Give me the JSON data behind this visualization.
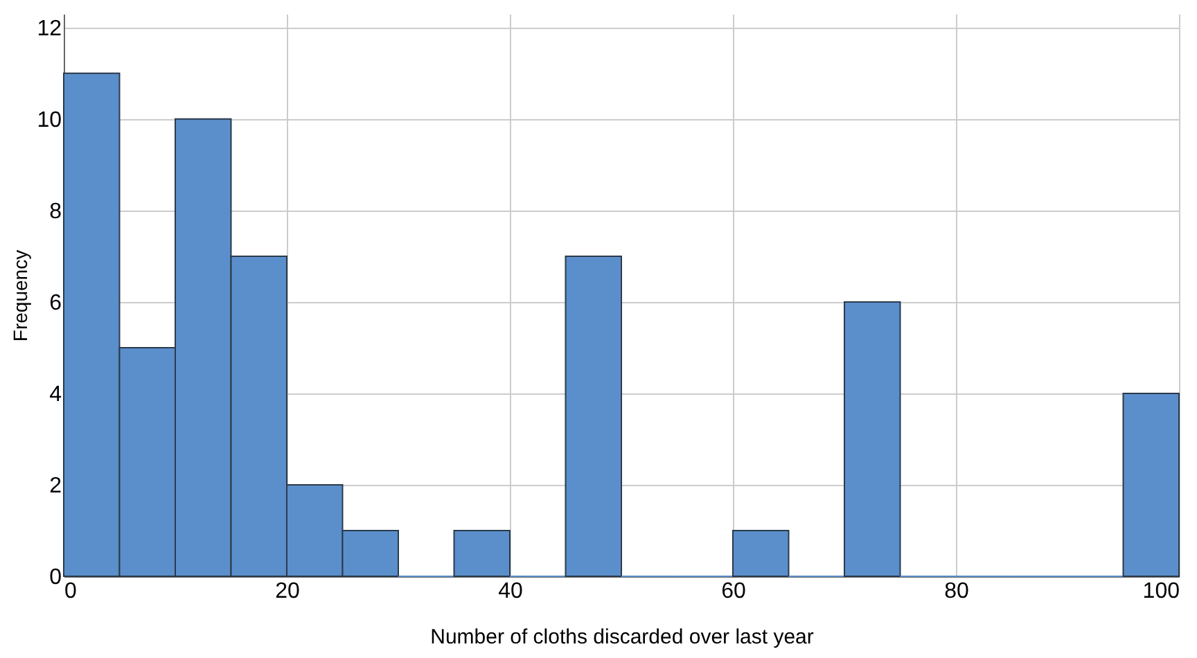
{
  "chart_data": {
    "type": "histogram",
    "xlabel": "Number of cloths discarded over last year",
    "ylabel": "Frequency",
    "bins": [
      0,
      5,
      10,
      15,
      20,
      25,
      30,
      35,
      40,
      45,
      50,
      55,
      60,
      65,
      70,
      75,
      80,
      85,
      90,
      95,
      100
    ],
    "values": [
      11,
      5,
      10,
      7,
      2,
      1,
      0,
      1,
      0,
      7,
      0,
      0,
      1,
      0,
      6,
      0,
      0,
      0,
      0,
      4
    ],
    "color": "#5b8fcc",
    "xlim": [
      0,
      100
    ],
    "xticks": [
      0,
      20,
      40,
      60,
      80,
      100
    ],
    "ylim": [
      0,
      12.3
    ],
    "yticks": [
      0,
      2,
      4,
      6,
      8,
      10,
      12
    ],
    "grid": true
  }
}
